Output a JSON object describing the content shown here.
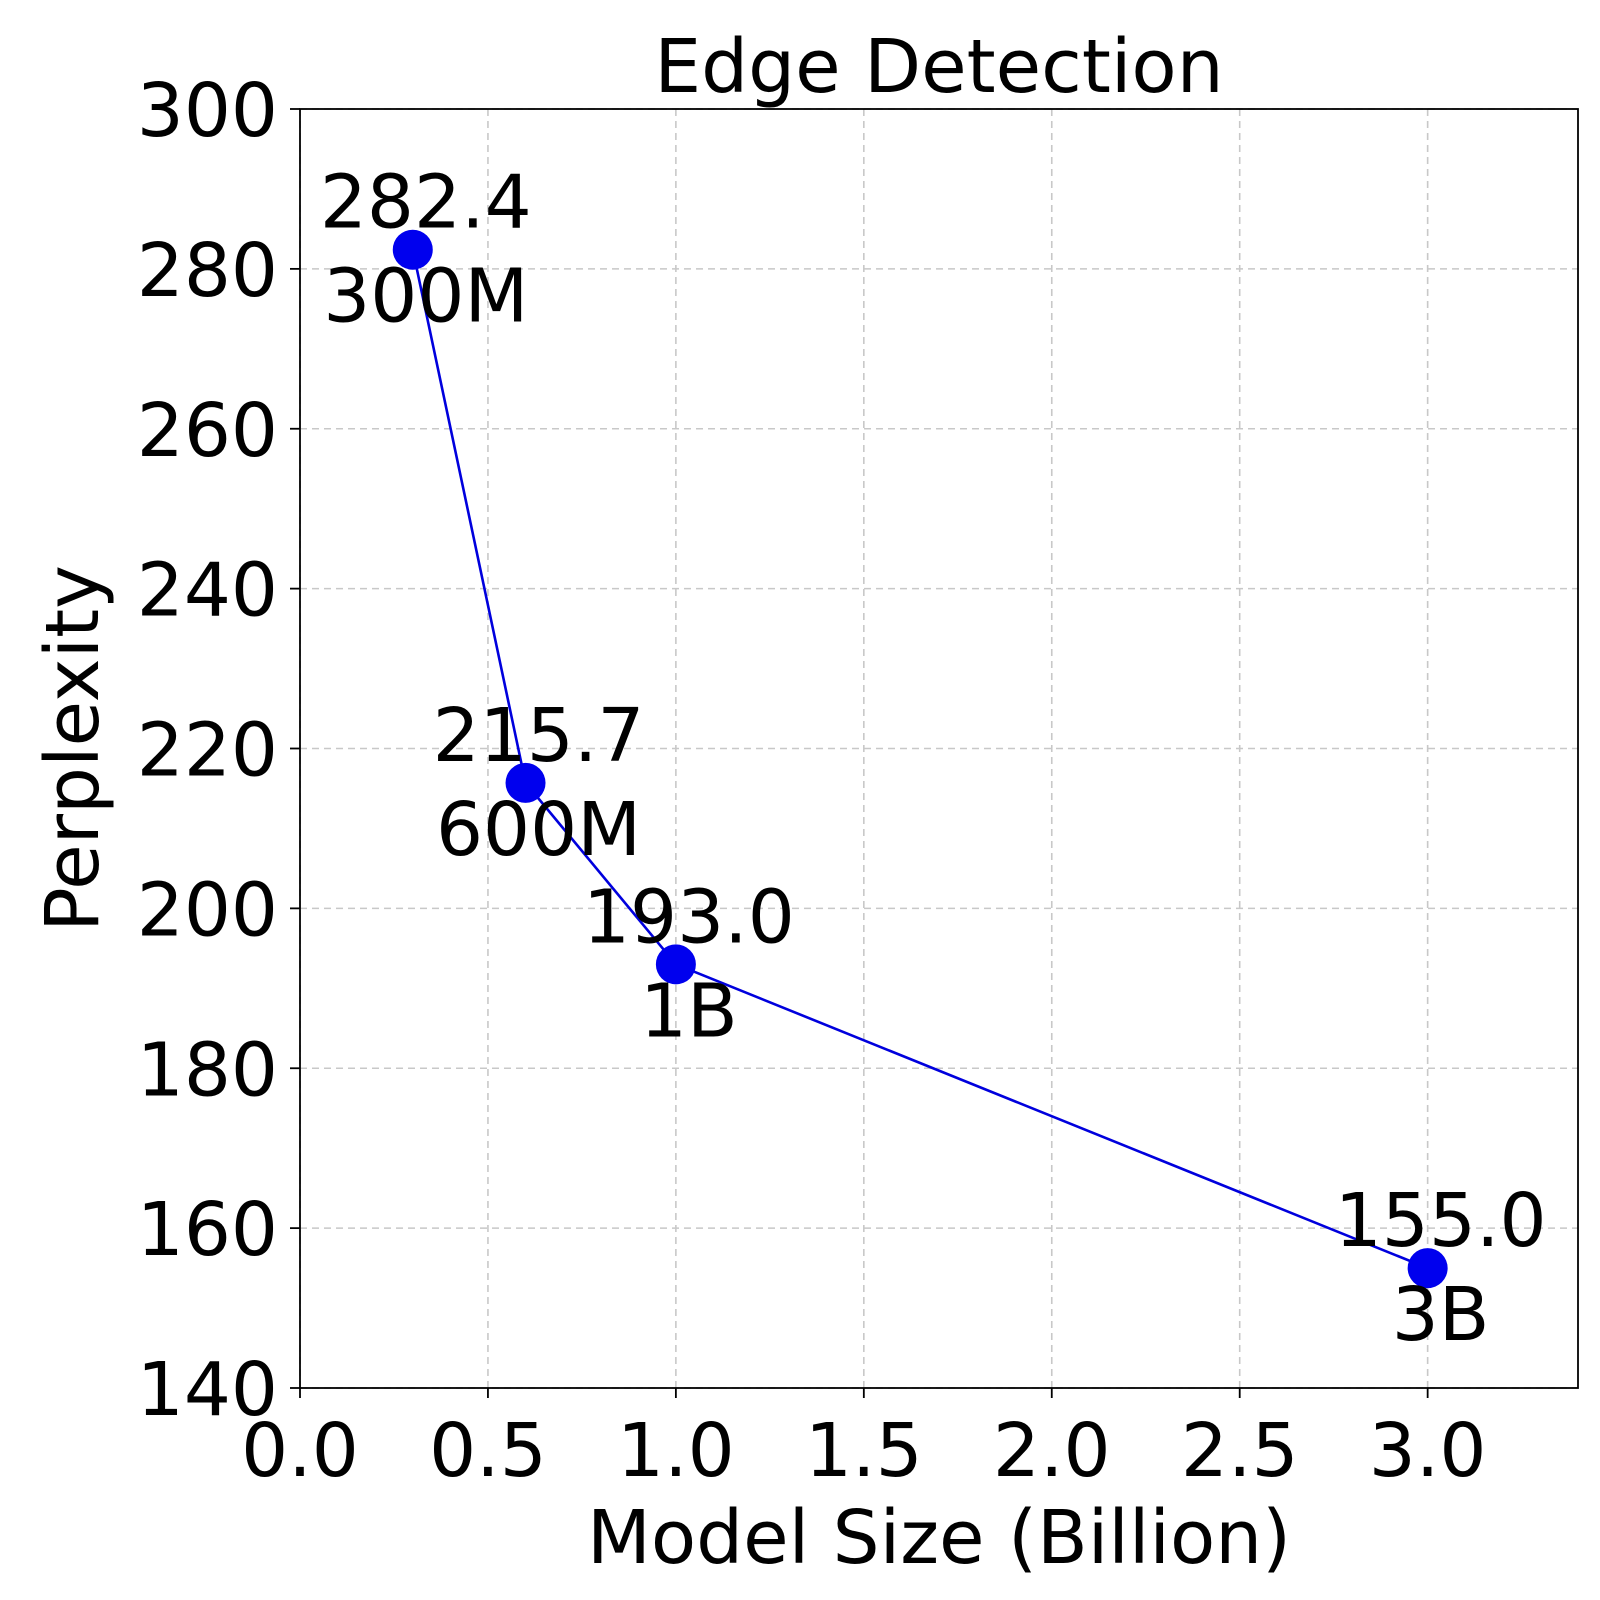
{
  "chart_data": {
    "type": "line",
    "title": "Edge Detection",
    "xlabel": "Model Size (Billion)",
    "ylabel": "Perplexity",
    "xlim": [
      0.0,
      3.4
    ],
    "ylim": [
      140,
      300
    ],
    "xticks": [
      "0.0",
      "0.5",
      "1.0",
      "1.5",
      "2.0",
      "2.5",
      "3.0"
    ],
    "yticks": [
      "140",
      "160",
      "180",
      "200",
      "220",
      "240",
      "260",
      "280",
      "300"
    ],
    "grid": true,
    "line_color": "#0000dd",
    "marker_color": "#0000ee",
    "series": [
      {
        "x": [
          0.3,
          0.6,
          1.0,
          3.0
        ],
        "y": [
          282.4,
          215.7,
          193.0,
          155.0
        ],
        "value_labels": [
          "282.4",
          "215.7",
          "193.0",
          "155.0"
        ],
        "size_labels": [
          "300M",
          "600M",
          "1B",
          "3B"
        ]
      }
    ]
  }
}
